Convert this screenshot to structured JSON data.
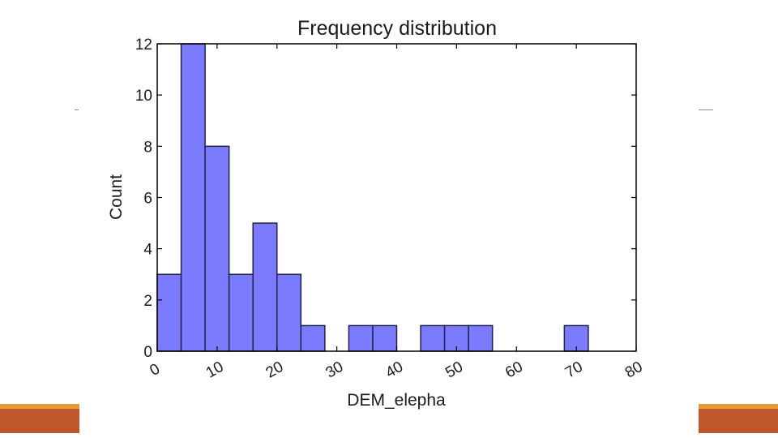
{
  "slide": {
    "accent_stripe_color": "#e8983a",
    "accent_block_color": "#c0572a",
    "rule_color": "#8c8c8c"
  },
  "chart_data": {
    "type": "bar",
    "title": "Frequency distribution",
    "xlabel": "DEM_elepha",
    "ylabel": "Count",
    "xlim": [
      0,
      80
    ],
    "ylim": [
      0,
      12
    ],
    "xticks": [
      0,
      10,
      20,
      30,
      40,
      50,
      60,
      70,
      80
    ],
    "yticks": [
      0,
      2,
      4,
      6,
      8,
      10,
      12
    ],
    "xtick_labels": [
      "0",
      "10",
      "20",
      "30",
      "40",
      "50",
      "60",
      "70",
      "80"
    ],
    "ytick_labels": [
      "0",
      "2",
      "4",
      "6",
      "8",
      "10",
      "12"
    ],
    "bin_edges": [
      0,
      4,
      8,
      12,
      16,
      20,
      24,
      28,
      32,
      36,
      40,
      44,
      48,
      52,
      56,
      60,
      64,
      68,
      72,
      76
    ],
    "counts": [
      3,
      12,
      8,
      3,
      5,
      3,
      1,
      0,
      1,
      1,
      0,
      1,
      1,
      1,
      0,
      0,
      0,
      1,
      0
    ],
    "bar_color": "#7b7bff",
    "bar_edge_color": "#222244",
    "grid": false,
    "xtick_rotation_deg": -30
  }
}
